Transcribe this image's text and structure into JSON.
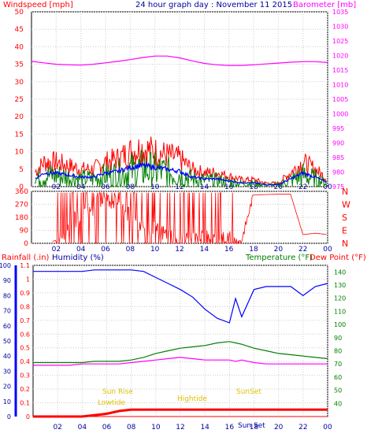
{
  "colors": {
    "red": "#ff0000",
    "blue": "#0000ff",
    "green": "#008000",
    "magenta": "#ff00ff",
    "darkblue": "#0000a0",
    "yellow": "#e0c000",
    "frame": "#000000"
  },
  "header": {
    "wind_label": "Windspeed [mph]",
    "title": "24 hour graph day : November 11 2015",
    "baro_label": "Barometer [mb]"
  },
  "panel3_labels": {
    "rain": "Rainfall (.in)",
    "humidity": "Humidity (%)",
    "temperature": "Temperature (°F)",
    "dewpoint": "Dew Point (°F)"
  },
  "annotations": {
    "sunrise": "Sun Rise",
    "lowtide": "Lowtide",
    "hightide": "Hightide",
    "sunset": "SunSet",
    "sun_bottom": "Sun Set"
  },
  "chart_data": [
    {
      "type": "line",
      "title": "24 hour graph day : November 11 2015",
      "x_ticks": [
        "02",
        "04",
        "06",
        "08",
        "10",
        "12",
        "14",
        "16",
        "18",
        "20",
        "22",
        "00"
      ],
      "y_left": {
        "label": "Windspeed [mph]",
        "ticks": [
          0,
          5,
          10,
          15,
          20,
          25,
          30,
          35,
          40,
          45,
          50
        ],
        "range": [
          0,
          50
        ]
      },
      "y_right": {
        "label": "Barometer [mb]",
        "ticks": [
          975,
          980,
          985,
          990,
          995,
          1000,
          1005,
          1010,
          1015,
          1020,
          1025,
          1030,
          1035
        ],
        "range": [
          975,
          1035
        ]
      },
      "x_hours": [
        0,
        1,
        2,
        3,
        4,
        5,
        6,
        7,
        8,
        9,
        10,
        11,
        12,
        13,
        14,
        15,
        16,
        17,
        18,
        19,
        20,
        21,
        22,
        23,
        24
      ],
      "series": [
        {
          "name": "Windspeed [mph]",
          "axis": "left",
          "color": "#ff0000",
          "values": [
            3,
            7,
            7,
            6,
            5,
            5,
            7,
            8,
            10,
            11,
            10,
            9,
            8,
            5,
            4,
            4,
            3,
            2,
            2,
            1,
            1,
            4,
            7,
            5,
            2
          ]
        },
        {
          "name": "Barometer [mb]",
          "axis": "right",
          "color": "#ff00ff",
          "values": [
            1018,
            1017.5,
            1017,
            1016.8,
            1016.7,
            1017,
            1017.5,
            1018,
            1018.6,
            1019.3,
            1019.8,
            1019.8,
            1019.2,
            1018.2,
            1017.3,
            1016.8,
            1016.6,
            1016.6,
            1016.8,
            1017.1,
            1017.4,
            1017.7,
            1017.9,
            1017.9,
            1017.6
          ]
        }
      ],
      "extra_series_colors": [
        "#0000ff",
        "#008000"
      ],
      "grid": true
    },
    {
      "type": "line",
      "x_ticks": [
        "02",
        "04",
        "06",
        "08",
        "10",
        "12",
        "14",
        "16",
        "18",
        "20",
        "22",
        "00"
      ],
      "y_left": {
        "ticks": [
          0,
          90,
          180,
          270,
          360
        ],
        "range": [
          0,
          360
        ]
      },
      "y_right": {
        "ticks": [
          "N",
          "W",
          "S",
          "E",
          "N"
        ]
      },
      "x_hours": [
        0,
        1,
        2,
        3,
        4,
        5,
        6,
        7,
        8,
        9,
        10,
        11,
        12,
        13,
        14,
        15,
        16,
        17,
        18,
        19,
        20,
        21,
        22,
        23,
        24
      ],
      "series": [
        {
          "color": "#ff0000",
          "values": [
            0,
            0,
            20,
            120,
            200,
            250,
            300,
            280,
            180,
            120,
            90,
            60,
            30,
            20,
            40,
            20,
            30,
            10,
            335,
            338,
            340,
            340,
            60,
            70,
            60
          ]
        }
      ],
      "grid": true
    },
    {
      "type": "line",
      "x_ticks": [
        "02",
        "04",
        "06",
        "08",
        "10",
        "12",
        "14",
        "16",
        "18",
        "20",
        "22",
        "00"
      ],
      "y_left": {
        "label": "Rainfall (.in)",
        "ticks": [
          0,
          0.1,
          0.2,
          0.3,
          0.4,
          0.5,
          0.6,
          0.7,
          0.8,
          0.9,
          1,
          1.1
        ],
        "range": [
          0,
          1.1
        ]
      },
      "y_left2": {
        "label": "Humidity (%)",
        "ticks": [
          0,
          10,
          20,
          30,
          40,
          50,
          60,
          70,
          80,
          90,
          100
        ],
        "range": [
          0,
          100
        ]
      },
      "y_right": {
        "label": "Temperature (°F)",
        "ticks": [
          40,
          50,
          60,
          70,
          80,
          90,
          100,
          110,
          120,
          130,
          140
        ],
        "range": [
          30,
          145
        ]
      },
      "x_hours": [
        0,
        1,
        2,
        3,
        4,
        5,
        6,
        7,
        8,
        9,
        10,
        11,
        12,
        13,
        14,
        15,
        16,
        16.5,
        17,
        18,
        19,
        20,
        21,
        22,
        23,
        24
      ],
      "series": [
        {
          "name": "Humidity (%)",
          "axis": "left2",
          "color": "#0000ff",
          "values": [
            96,
            96,
            96,
            96,
            96,
            97,
            97,
            97,
            97,
            96,
            92,
            88,
            84,
            79,
            71,
            65,
            62,
            78,
            66,
            84,
            86,
            86,
            86,
            80,
            86,
            88
          ]
        },
        {
          "name": "Temperature (°F)",
          "axis": "right",
          "color": "#008000",
          "values": [
            71,
            71,
            71,
            71,
            71,
            72,
            72,
            72,
            73,
            75,
            78,
            80,
            82,
            83,
            84,
            86,
            87,
            86,
            85,
            82,
            80,
            78,
            77,
            76,
            75,
            74
          ]
        },
        {
          "name": "Dew Point (°F)",
          "axis": "right",
          "color": "#ff00ff",
          "values": [
            69,
            69,
            69,
            69,
            70,
            70,
            70,
            70,
            71,
            72,
            73,
            74,
            75,
            74,
            73,
            73,
            73,
            72,
            73,
            71,
            70,
            70,
            70,
            70,
            70,
            70
          ]
        },
        {
          "name": "Rainfall (.in)",
          "axis": "left",
          "color": "#ff0000",
          "values": [
            0,
            0,
            0,
            0,
            0,
            0.01,
            0.02,
            0.04,
            0.05,
            0.05,
            0.05,
            0.05,
            0.05,
            0.05,
            0.05,
            0.05,
            0.05,
            0.05,
            0.05,
            0.05,
            0.05,
            0.05,
            0.05,
            0.05,
            0.05,
            0.05
          ]
        }
      ],
      "grid": true
    }
  ]
}
